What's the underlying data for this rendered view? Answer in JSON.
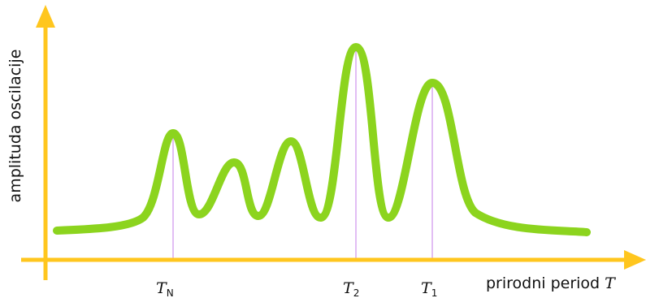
{
  "diagram": {
    "y_axis_label": "amplituda oscilacije",
    "x_axis_label_text": "prirodni period ",
    "x_axis_label_symbol": "T",
    "markers": [
      {
        "id": "tn",
        "symbol": "T",
        "subscript": "N"
      },
      {
        "id": "t2",
        "symbol": "T",
        "subscript": "2"
      },
      {
        "id": "t1",
        "symbol": "T",
        "subscript": "1"
      }
    ],
    "colors": {
      "axis": "#FFC61E",
      "curve": "#8CD41E",
      "marker_line": "#D9A8F0",
      "text": "#111111"
    }
  }
}
